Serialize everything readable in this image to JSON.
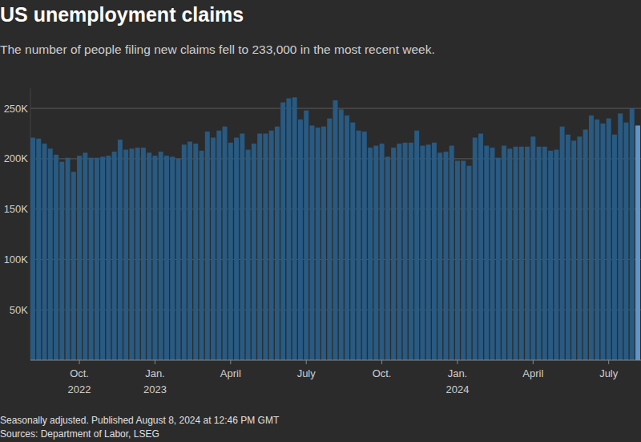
{
  "chart_data": {
    "type": "bar",
    "title": "US unemployment claims",
    "subtitle": "The number of people filing new claims fell to 233,000 in the most recent week.",
    "notes": [
      "Seasonally adjusted. Published August 8, 2024 at 12:46 PM GMT",
      "Sources: Department of Labor, LSEG"
    ],
    "categories": [
      null,
      null,
      null,
      null,
      null,
      null,
      null,
      null,
      "Oct.\n2022",
      null,
      null,
      null,
      null,
      null,
      null,
      null,
      null,
      null,
      null,
      null,
      null,
      "Jan.\n2023",
      null,
      null,
      null,
      null,
      null,
      null,
      null,
      null,
      null,
      null,
      null,
      null,
      "April",
      null,
      null,
      null,
      null,
      null,
      null,
      null,
      null,
      null,
      null,
      null,
      null,
      "July",
      null,
      null,
      null,
      null,
      null,
      null,
      null,
      null,
      null,
      null,
      null,
      null,
      "Oct.",
      null,
      null,
      null,
      null,
      null,
      null,
      null,
      null,
      null,
      null,
      null,
      null,
      "Jan.\n2024",
      null,
      null,
      null,
      null,
      null,
      null,
      null,
      null,
      null,
      null,
      null,
      null,
      "April",
      null,
      null,
      null,
      null,
      null,
      null,
      null,
      null,
      null,
      null,
      null,
      null,
      "July",
      null,
      null,
      null,
      null,
      null
    ],
    "values": [
      221000,
      220000,
      215000,
      210000,
      204000,
      197000,
      201000,
      187000,
      203000,
      206000,
      201000,
      201000,
      202000,
      203000,
      207000,
      219000,
      209000,
      210000,
      211000,
      211000,
      206000,
      203000,
      207000,
      203000,
      202000,
      200000,
      214000,
      217000,
      215000,
      208000,
      227000,
      221000,
      228000,
      232000,
      216000,
      221000,
      225000,
      209000,
      215000,
      225000,
      225000,
      228000,
      232000,
      256000,
      260000,
      261000,
      239000,
      248000,
      233000,
      231000,
      232000,
      240000,
      258000,
      249000,
      243000,
      236000,
      228000,
      227000,
      211000,
      213000,
      215000,
      202000,
      211000,
      215000,
      216000,
      216000,
      228000,
      213000,
      214000,
      216000,
      206000,
      207000,
      213000,
      198000,
      198000,
      193000,
      221000,
      225000,
      213000,
      211000,
      201000,
      213000,
      210000,
      212000,
      212000,
      212000,
      222000,
      212000,
      212000,
      208000,
      209000,
      232000,
      224000,
      218000,
      222000,
      229000,
      243000,
      239000,
      235000,
      240000,
      224000,
      245000,
      236000,
      250000,
      233000
    ],
    "colors": [
      "#285a82",
      "#285a82",
      "#285a82",
      "#285a82",
      "#285a82",
      "#285a82",
      "#285a82",
      "#285a82",
      "#285a82",
      "#285a82",
      "#285a82",
      "#285a82",
      "#285a82",
      "#285a82",
      "#285a82",
      "#285a82",
      "#285a82",
      "#285a82",
      "#285a82",
      "#285a82",
      "#285a82",
      "#285a82",
      "#285a82",
      "#285a82",
      "#285a82",
      "#285a82",
      "#285a82",
      "#285a82",
      "#285a82",
      "#285a82",
      "#285a82",
      "#285a82",
      "#285a82",
      "#285a82",
      "#285a82",
      "#285a82",
      "#285a82",
      "#285a82",
      "#285a82",
      "#285a82",
      "#285a82",
      "#285a82",
      "#285a82",
      "#285a82",
      "#285a82",
      "#285a82",
      "#285a82",
      "#285a82",
      "#285a82",
      "#285a82",
      "#285a82",
      "#285a82",
      "#285a82",
      "#285a82",
      "#285a82",
      "#285a82",
      "#285a82",
      "#285a82",
      "#285a82",
      "#285a82",
      "#285a82",
      "#285a82",
      "#285a82",
      "#285a82",
      "#285a82",
      "#285a82",
      "#285a82",
      "#285a82",
      "#285a82",
      "#285a82",
      "#285a82",
      "#285a82",
      "#285a82",
      "#285a82",
      "#285a82",
      "#285a82",
      "#285a82",
      "#285a82",
      "#285a82",
      "#285a82",
      "#285a82",
      "#285a82",
      "#285a82",
      "#285a82",
      "#285a82",
      "#285a82",
      "#285a82",
      "#285a82",
      "#285a82",
      "#285a82",
      "#285a82",
      "#285a82",
      "#285a82",
      "#285a82",
      "#285a82",
      "#285a82",
      "#285a82",
      "#285a82",
      "#285a82",
      "#285a82",
      "#285a82",
      "#285a82",
      "#285a82",
      "#285a82",
      "#5f95c8"
    ],
    "ylim": [
      0,
      270000
    ],
    "yticks": [
      {
        "value": 50000,
        "label": "50K"
      },
      {
        "value": 100000,
        "label": "100K"
      },
      {
        "value": 150000,
        "label": "150K"
      },
      {
        "value": 200000,
        "label": "200K"
      },
      {
        "value": 250000,
        "label": "250K"
      }
    ],
    "grid": true
  }
}
